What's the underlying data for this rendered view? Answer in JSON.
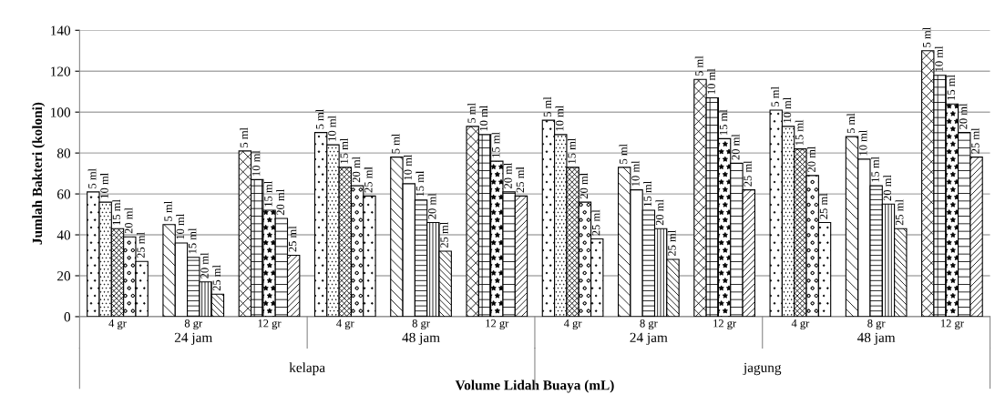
{
  "chart_data": {
    "type": "bar",
    "xlabel": "Volume Lidah Buaya (mL)",
    "ylabel": "Jumlah Bakteri (koloni)",
    "categories": [
      "4 gr",
      "8 gr",
      "12 gr",
      "4 gr",
      "8 gr",
      "12 gr",
      "4 gr",
      "8 gr",
      "12 gr",
      "4 gr",
      "8 gr",
      "12 gr"
    ],
    "series": [
      {
        "name": "5 ml",
        "color": "#000000",
        "values": [
          61,
          45,
          81,
          90,
          78,
          93,
          96,
          73,
          116,
          101,
          88,
          130
        ]
      },
      {
        "name": "10 ml",
        "color": "#000000",
        "values": [
          56,
          36,
          67,
          84,
          65,
          89,
          89,
          62,
          107,
          93,
          77,
          118
        ]
      },
      {
        "name": "15 ml",
        "color": "#000000",
        "values": [
          43,
          29,
          52,
          73,
          57,
          76,
          73,
          52,
          87,
          82,
          64,
          104
        ]
      },
      {
        "name": "20 ml",
        "color": "#000000",
        "values": [
          39,
          17,
          48,
          64,
          46,
          61,
          56,
          43,
          75,
          69,
          55,
          90
        ]
      },
      {
        "name": "25 ml",
        "color": "#000000",
        "values": [
          27,
          11,
          30,
          59,
          32,
          59,
          38,
          28,
          62,
          46,
          43,
          78
        ]
      }
    ],
    "annotations": [
      "24 jam",
      "48 jam",
      "24 jam",
      "48 jam",
      "kelapa",
      "jagung"
    ],
    "ylim": [
      0,
      140
    ],
    "yticks": [
      0,
      20,
      40,
      60,
      80,
      100,
      120,
      140
    ],
    "grid": "y"
  }
}
